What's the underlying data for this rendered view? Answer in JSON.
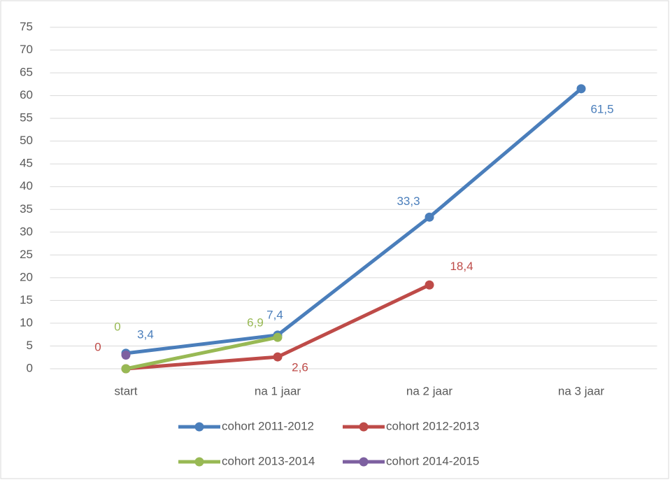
{
  "chart_data": {
    "type": "line",
    "categories": [
      "start",
      "na 1 jaar",
      "na 2 jaar",
      "na 3 jaar"
    ],
    "series": [
      {
        "name": "cohort 2011-2012",
        "color": "#4a7ebb",
        "values": [
          3.4,
          7.4,
          33.3,
          61.5
        ],
        "value_labels": [
          "3,4",
          "7,4",
          "33,3",
          "61,5"
        ]
      },
      {
        "name": "cohort 2012-2013",
        "color": "#be4b48",
        "values": [
          0,
          2.6,
          18.4,
          null
        ],
        "value_labels": [
          "0",
          "2,6",
          "18,4",
          null
        ]
      },
      {
        "name": "cohort 2013-2014",
        "color": "#98b954",
        "values": [
          0,
          6.9,
          null,
          null
        ],
        "value_labels": [
          "0",
          "6,9",
          null,
          null
        ]
      },
      {
        "name": "cohort 2014-2015",
        "color": "#7d60a0",
        "values": [
          3,
          null,
          null,
          null
        ]
      }
    ],
    "ylim": [
      0,
      75
    ],
    "yticks": [
      0,
      5,
      10,
      15,
      20,
      25,
      30,
      35,
      40,
      45,
      50,
      55,
      60,
      65,
      70,
      75
    ],
    "grid": true
  }
}
